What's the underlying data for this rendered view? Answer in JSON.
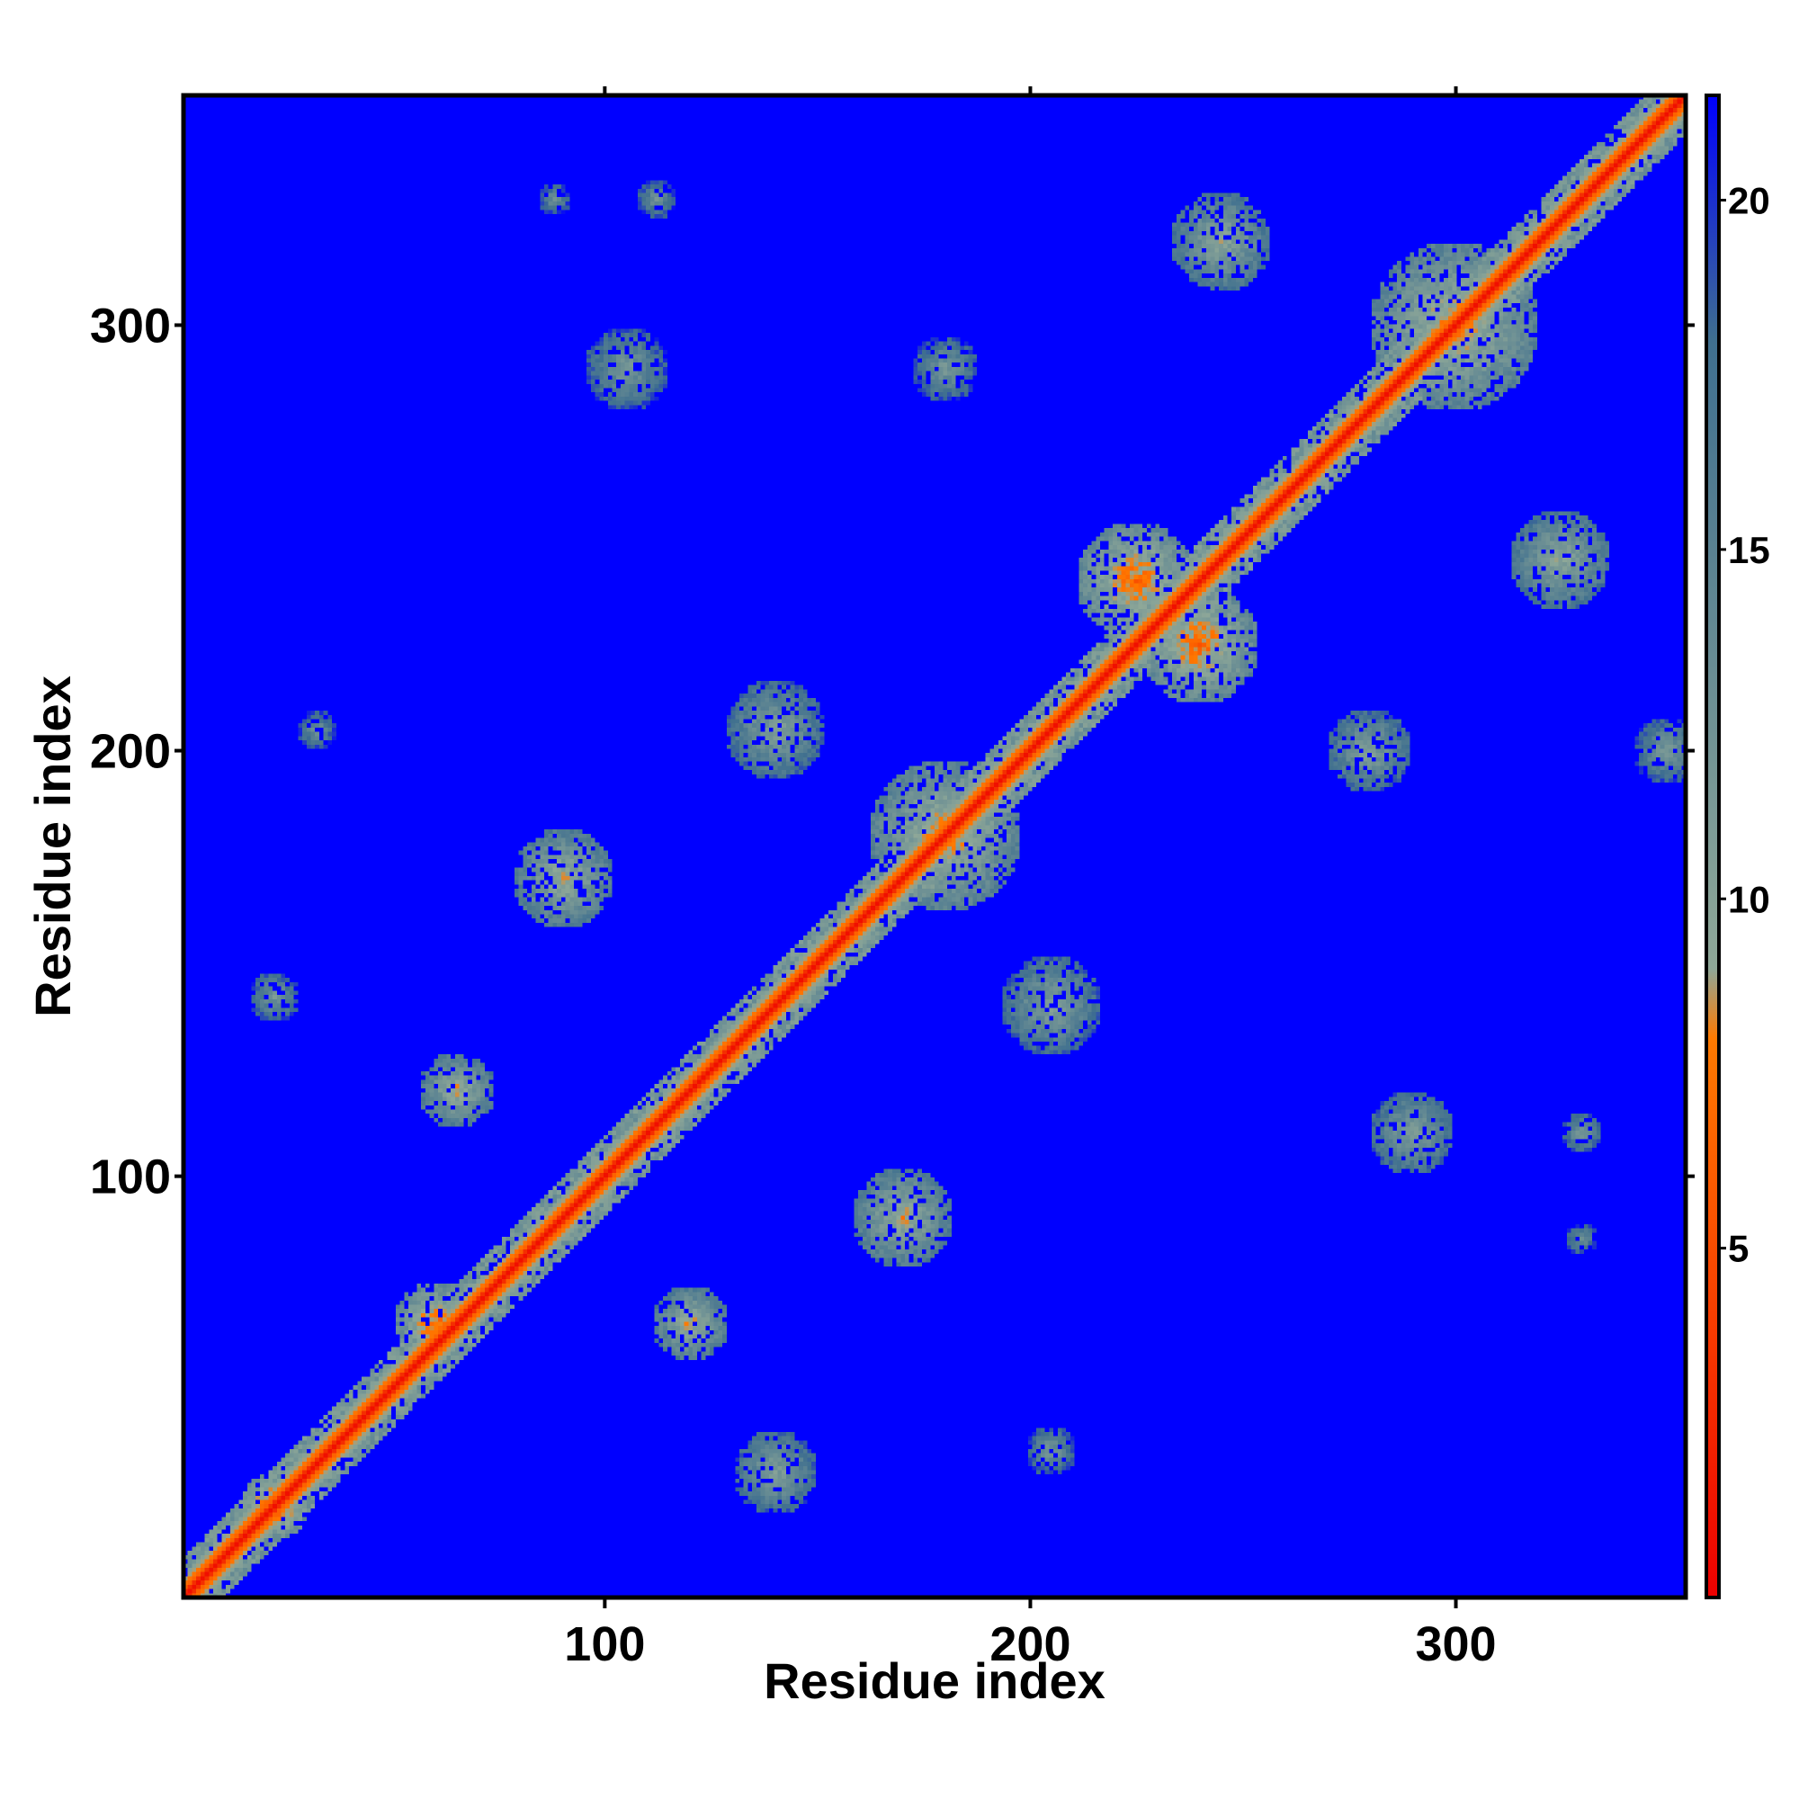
{
  "chart_data": {
    "type": "heatmap",
    "description_kind": "residue distance map",
    "xlabel": "Residue index",
    "ylabel": "Residue index",
    "xlim": [
      1,
      354
    ],
    "ylim": [
      1,
      354
    ],
    "x_ticks": [
      100,
      200,
      300
    ],
    "y_ticks": [
      100,
      200,
      300
    ],
    "colorbar": {
      "min": 0,
      "max": 21.5,
      "ticks": [
        5,
        10,
        15,
        20
      ],
      "colors": [
        "#ee0000",
        "#ff7a00",
        "#8fa898",
        "#3f6f8f",
        "#0000ff"
      ],
      "stops": [
        0,
        8,
        9,
        18,
        21.5
      ]
    },
    "background_value": 21.5,
    "diagonal_value": 1.0,
    "contact_regions": [
      {
        "x": 22,
        "y": 22,
        "spread": 8,
        "value": 4
      },
      {
        "x": 60,
        "y": 65,
        "spread": 10,
        "value": 5
      },
      {
        "x": 65,
        "y": 120,
        "spread": 9,
        "value": 7
      },
      {
        "x": 120,
        "y": 65,
        "spread": 9,
        "value": 7
      },
      {
        "x": 22,
        "y": 142,
        "spread": 6,
        "value": 10
      },
      {
        "x": 32,
        "y": 205,
        "spread": 5,
        "value": 11
      },
      {
        "x": 88,
        "y": 330,
        "spread": 4,
        "value": 11
      },
      {
        "x": 112,
        "y": 330,
        "spread": 5,
        "value": 11
      },
      {
        "x": 105,
        "y": 290,
        "spread": 10,
        "value": 10
      },
      {
        "x": 140,
        "y": 205,
        "spread": 12,
        "value": 9
      },
      {
        "x": 205,
        "y": 140,
        "spread": 12,
        "value": 9
      },
      {
        "x": 170,
        "y": 90,
        "spread": 12,
        "value": 7
      },
      {
        "x": 90,
        "y": 170,
        "spread": 12,
        "value": 7
      },
      {
        "x": 180,
        "y": 180,
        "spread": 18,
        "value": 6
      },
      {
        "x": 225,
        "y": 240,
        "spread": 14,
        "value": 5
      },
      {
        "x": 240,
        "y": 225,
        "spread": 14,
        "value": 5
      },
      {
        "x": 180,
        "y": 290,
        "spread": 8,
        "value": 10
      },
      {
        "x": 245,
        "y": 320,
        "spread": 12,
        "value": 8
      },
      {
        "x": 325,
        "y": 245,
        "spread": 12,
        "value": 8
      },
      {
        "x": 300,
        "y": 300,
        "spread": 20,
        "value": 6
      },
      {
        "x": 290,
        "y": 110,
        "spread": 10,
        "value": 9
      },
      {
        "x": 330,
        "y": 110,
        "spread": 5,
        "value": 10
      },
      {
        "x": 330,
        "y": 85,
        "spread": 4,
        "value": 11
      },
      {
        "x": 205,
        "y": 35,
        "spread": 6,
        "value": 10
      },
      {
        "x": 140,
        "y": 30,
        "spread": 10,
        "value": 9
      },
      {
        "x": 350,
        "y": 200,
        "spread": 8,
        "value": 10
      },
      {
        "x": 280,
        "y": 200,
        "spread": 10,
        "value": 9
      }
    ]
  }
}
